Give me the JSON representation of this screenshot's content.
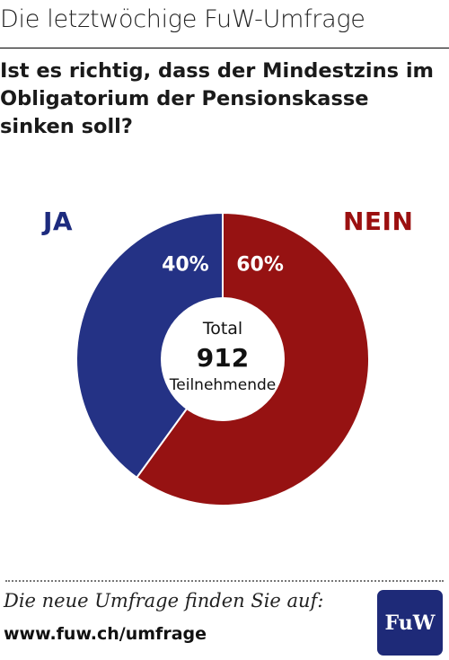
{
  "header": {
    "title": "Die letztwöchige FuW-Umfrage"
  },
  "question": "Ist es richtig, dass der Mindestzins im Obligatorium der Pensionskasse sinken soll?",
  "chart_data": {
    "type": "pie",
    "categories": [
      "JA",
      "NEIN"
    ],
    "values": [
      40,
      60
    ],
    "value_labels": [
      "40%",
      "60%"
    ],
    "colors": [
      "#243285",
      "#961212"
    ],
    "center": {
      "line1": "Total",
      "total": "912",
      "line3": "Teilnehmende"
    }
  },
  "footer": {
    "text": "Die neue Umfrage finden Sie auf:",
    "url": "www.fuw.ch/umfrage",
    "logo": "FuW"
  }
}
